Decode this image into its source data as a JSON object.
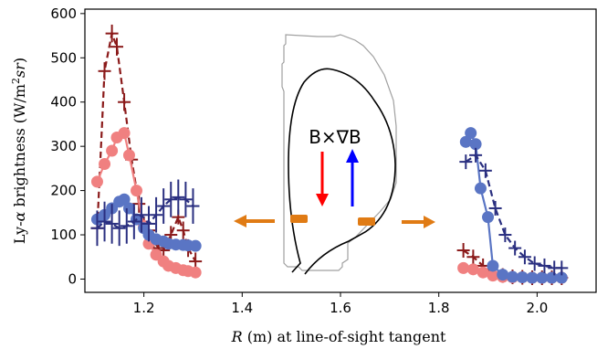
{
  "chart_data": {
    "type": "line",
    "title": "",
    "xlabel_italic": "R",
    "xlabel_rest": " (m) at line-of-sight tangent",
    "ylabel_pre": "Ly-",
    "ylabel_alpha": "α",
    "ylabel_mid": " brightness (W/m",
    "ylabel_sup": "2",
    "ylabel_sr": "sr",
    "ylabel_post": ")",
    "xlim": [
      1.08,
      2.12
    ],
    "ylim": [
      -30,
      610
    ],
    "xticks": [
      1.2,
      1.4,
      1.6,
      1.8,
      2.0
    ],
    "xtick_labels": [
      "1.2",
      "1.4",
      "1.6",
      "1.8",
      "2.0"
    ],
    "yticks": [
      0,
      100,
      200,
      300,
      400,
      500,
      600
    ],
    "ytick_labels": [
      "0",
      "100",
      "200",
      "300",
      "400",
      "500",
      "600"
    ],
    "annotation": "B×∇B",
    "colors": {
      "darkred": "#8b1a1a",
      "pink": "#f08080",
      "blue": "#5a75c4",
      "navy": "#2a2f80",
      "orange": "#e07b14",
      "arrow_red": "#ff0000",
      "arrow_blue": "#0000ff"
    },
    "series": [
      {
        "style": "dashed-cross",
        "color": "#8b1a1a",
        "x": [
          1.105,
          1.12,
          1.135,
          1.145,
          1.16,
          1.175,
          1.19,
          1.2,
          1.21,
          1.22,
          1.23,
          1.24,
          1.255,
          1.27,
          1.28,
          1.29,
          1.305,
          1.85,
          1.87,
          1.89,
          1.91,
          1.93,
          1.95,
          1.97,
          1.99,
          2.01,
          2.03,
          2.05
        ],
        "y": [
          115,
          470,
          555,
          525,
          400,
          270,
          170,
          125,
          110,
          85,
          70,
          65,
          100,
          140,
          110,
          70,
          40,
          65,
          50,
          30,
          15,
          8,
          5,
          4,
          3,
          3,
          3,
          3
        ],
        "yerr": [
          25,
          20,
          20,
          20,
          20,
          15,
          20,
          15,
          20,
          15,
          15,
          20,
          20,
          15,
          20,
          20,
          20,
          5,
          5,
          5,
          5,
          4,
          4,
          3,
          3,
          3,
          3,
          3
        ]
      },
      {
        "style": "solid-circle",
        "color": "#f08080",
        "x": [
          1.105,
          1.12,
          1.135,
          1.145,
          1.16,
          1.17,
          1.185,
          1.2,
          1.21,
          1.225,
          1.24,
          1.25,
          1.265,
          1.28,
          1.29,
          1.305,
          1.85,
          1.87,
          1.89,
          1.91,
          1.93,
          1.95,
          1.97,
          1.99,
          2.01,
          2.03,
          2.05
        ],
        "y": [
          220,
          260,
          290,
          320,
          330,
          280,
          200,
          120,
          80,
          55,
          40,
          30,
          25,
          20,
          18,
          15,
          25,
          22,
          15,
          8,
          5,
          4,
          4,
          3,
          3,
          3,
          3
        ]
      },
      {
        "style": "solid-circle",
        "color": "#5a75c4",
        "x": [
          1.105,
          1.12,
          1.135,
          1.15,
          1.16,
          1.17,
          1.185,
          1.2,
          1.21,
          1.225,
          1.24,
          1.25,
          1.265,
          1.28,
          1.29,
          1.305,
          1.855,
          1.865,
          1.875,
          1.885,
          1.9,
          1.91,
          1.93,
          1.95,
          1.97,
          1.99,
          2.01,
          2.03,
          2.05
        ],
        "y": [
          135,
          145,
          160,
          175,
          180,
          160,
          135,
          115,
          100,
          90,
          85,
          80,
          78,
          77,
          76,
          75,
          310,
          330,
          305,
          205,
          140,
          30,
          10,
          5,
          4,
          3,
          3,
          3,
          3
        ]
      },
      {
        "style": "dashed-cross",
        "color": "#2a2f80",
        "x": [
          1.105,
          1.12,
          1.135,
          1.15,
          1.165,
          1.18,
          1.195,
          1.21,
          1.225,
          1.24,
          1.255,
          1.27,
          1.285,
          1.3,
          1.855,
          1.875,
          1.895,
          1.915,
          1.935,
          1.955,
          1.975,
          1.995,
          2.015,
          2.035,
          2.05
        ],
        "y": [
          115,
          130,
          125,
          115,
          120,
          130,
          145,
          125,
          145,
          165,
          180,
          185,
          180,
          165,
          265,
          280,
          245,
          160,
          100,
          70,
          50,
          35,
          30,
          25,
          25
        ],
        "yerr": [
          40,
          45,
          45,
          40,
          40,
          40,
          40,
          40,
          40,
          40,
          40,
          40,
          40,
          40,
          10,
          10,
          10,
          10,
          10,
          8,
          8,
          8,
          6,
          6,
          6
        ]
      }
    ]
  }
}
